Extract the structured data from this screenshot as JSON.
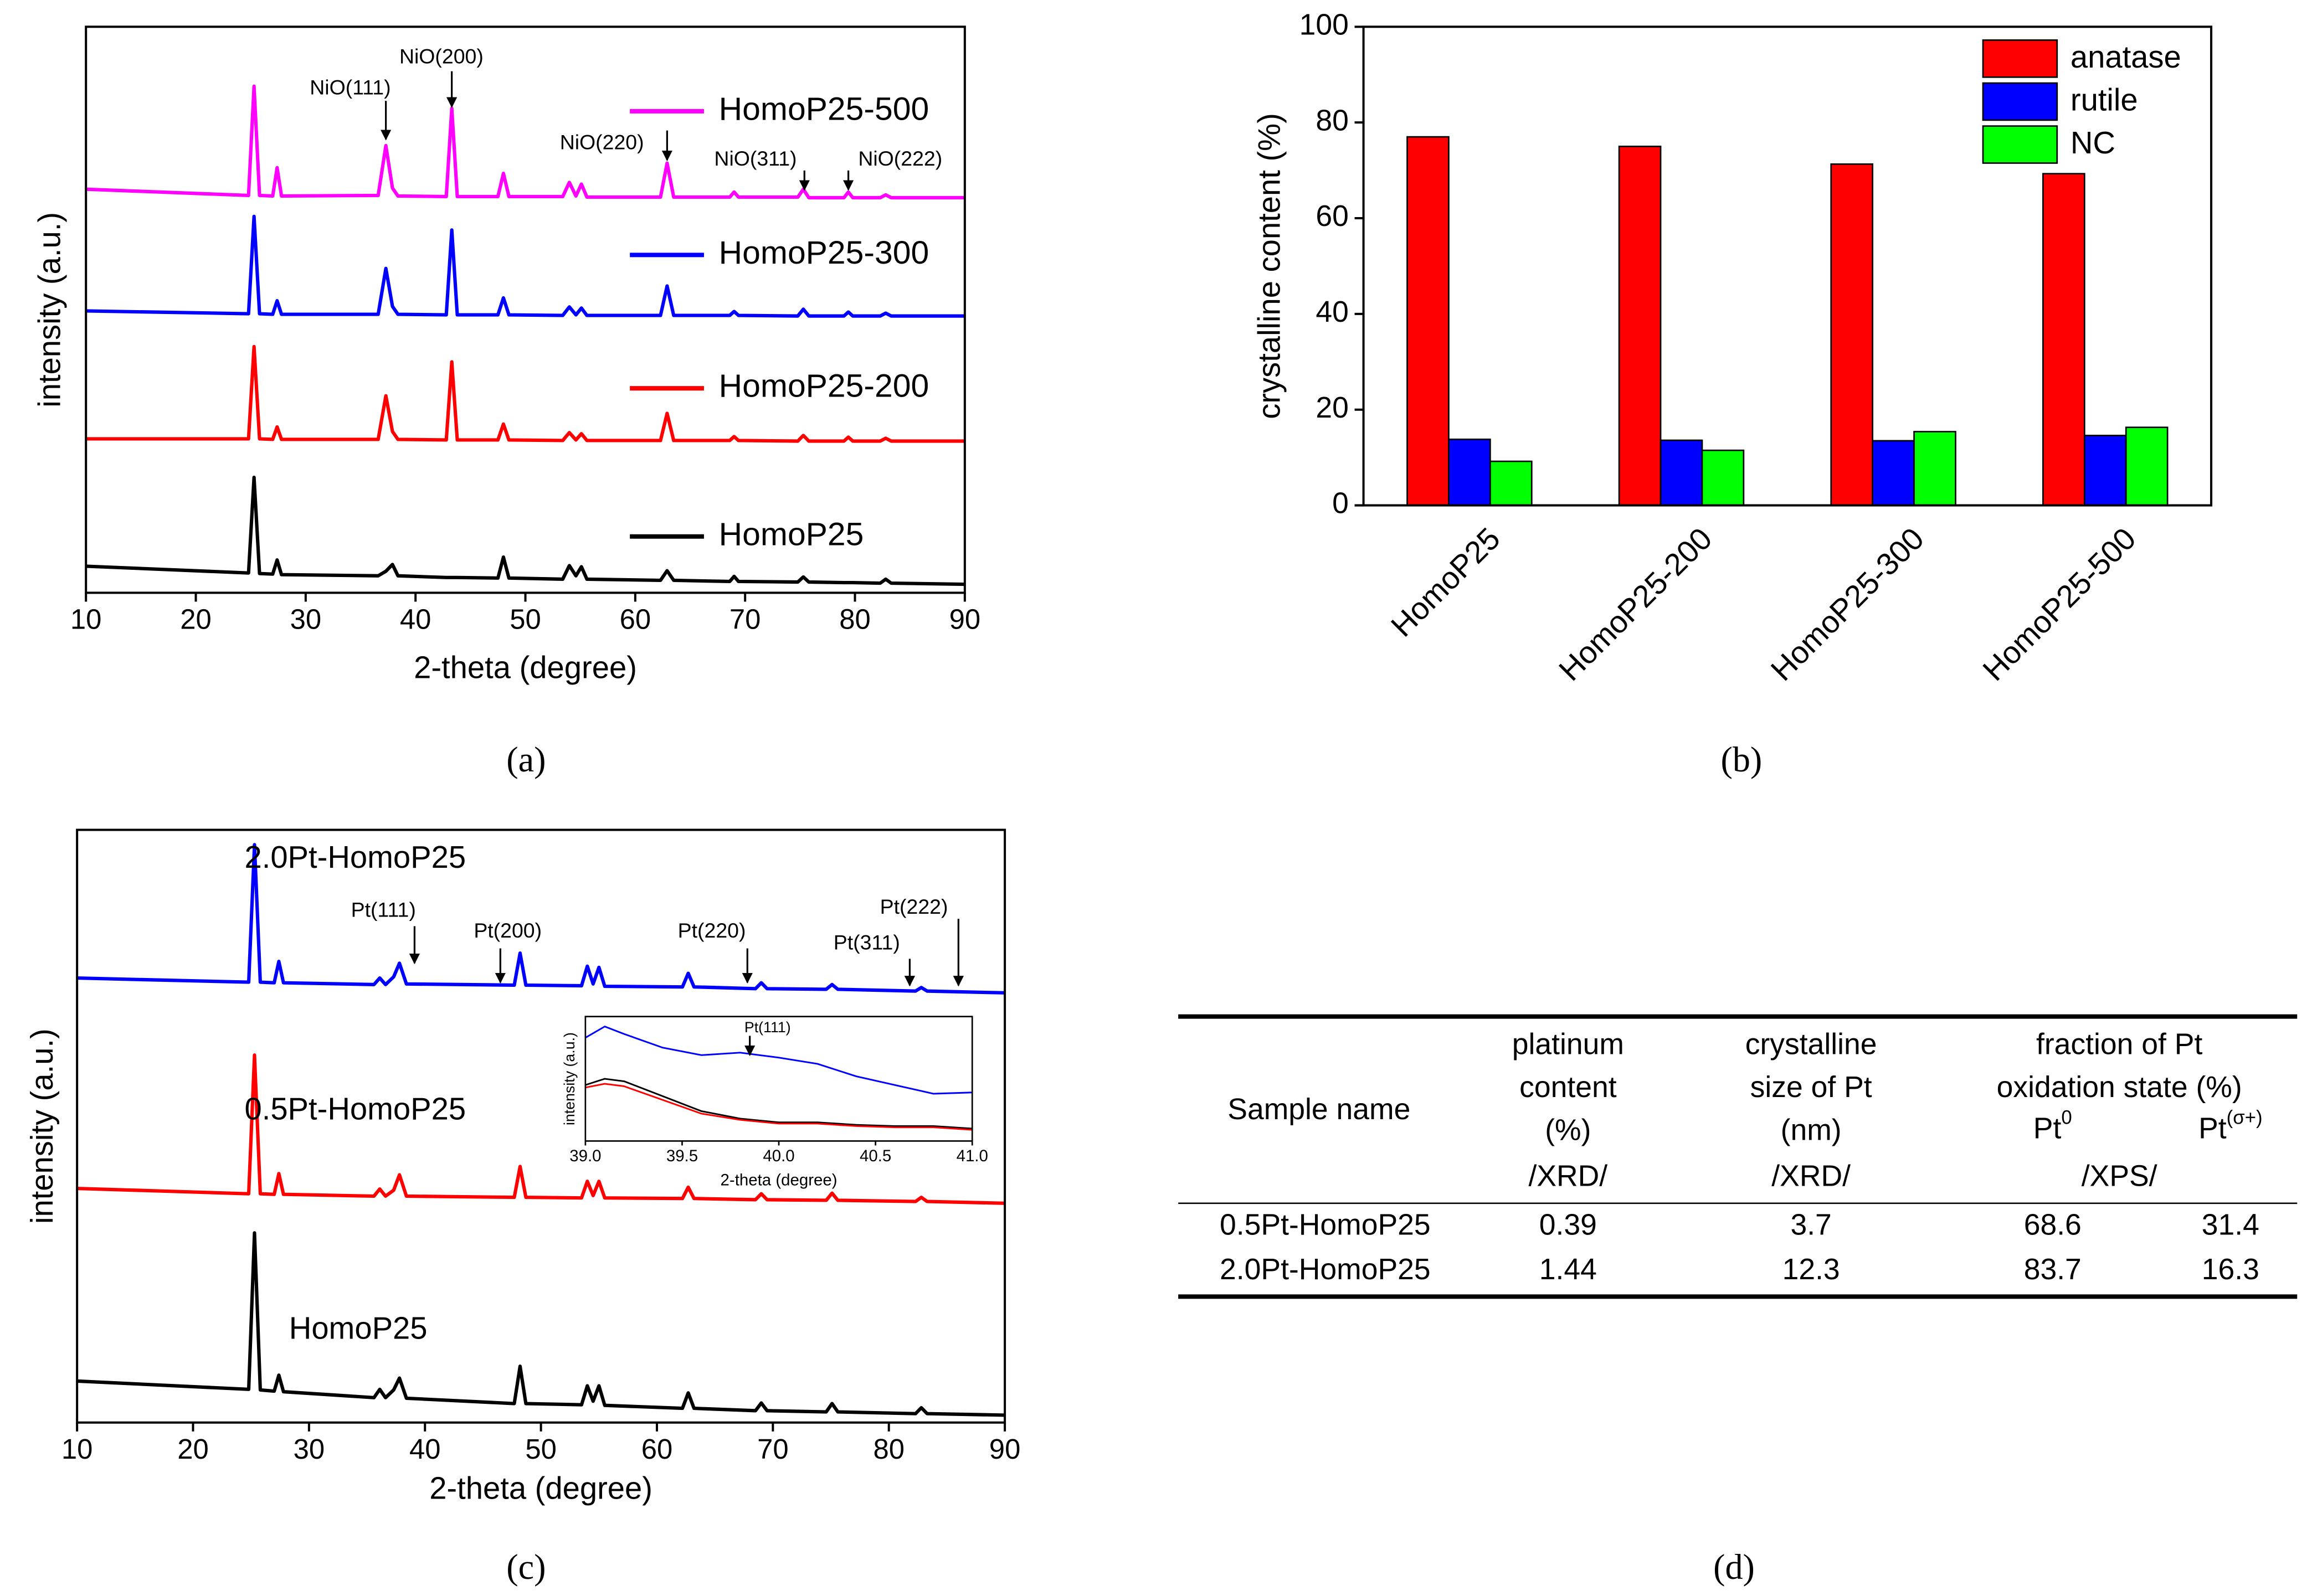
{
  "chart_data": [
    {
      "type": "line",
      "panel_label": "(a)",
      "xlabel": "2-theta (degree)",
      "ylabel": "intensity (a.u.)",
      "xlim": [
        10,
        90
      ],
      "xticks": [
        10,
        20,
        30,
        40,
        50,
        60,
        70,
        80,
        90
      ],
      "ylim": [
        0,
        100
      ],
      "x": [
        10,
        24.8,
        25.3,
        25.8,
        27.0,
        27.4,
        27.8,
        36.6,
        37.3,
        37.9,
        38.4,
        42.8,
        43.3,
        43.8,
        47.5,
        48.0,
        48.5,
        53.4,
        54.0,
        54.6,
        55.1,
        55.6,
        62.3,
        62.9,
        63.5,
        68.6,
        69.0,
        69.4,
        74.8,
        75.3,
        75.8,
        79.0,
        79.4,
        79.8,
        82.3,
        82.8,
        83.3,
        90
      ],
      "series": [
        {
          "name": "HomoP25-500",
          "color": "#ff00ff",
          "values": [
            71.3,
            70.2,
            89.5,
            70.2,
            70.1,
            75.1,
            70.1,
            70.2,
            79.0,
            71.5,
            70.1,
            70.0,
            85.6,
            70.0,
            70.0,
            74.1,
            70.0,
            70.0,
            72.5,
            70.1,
            72.2,
            69.9,
            69.9,
            75.9,
            69.9,
            69.9,
            70.8,
            69.9,
            69.9,
            71.3,
            69.8,
            69.8,
            70.8,
            69.8,
            69.8,
            70.3,
            69.8,
            69.8
          ]
        },
        {
          "name": "HomoP25-300",
          "color": "#0000ff",
          "values": [
            49.8,
            49.3,
            66.5,
            49.3,
            49.2,
            51.6,
            49.2,
            49.2,
            57.3,
            50.6,
            49.2,
            49.1,
            64.1,
            49.1,
            49.1,
            52.1,
            49.1,
            49.0,
            50.5,
            49.1,
            50.3,
            49.0,
            49.0,
            54.2,
            49.0,
            49.0,
            49.7,
            49.0,
            48.9,
            50.1,
            48.9,
            48.9,
            49.6,
            48.9,
            48.9,
            49.4,
            48.9,
            48.9
          ]
        },
        {
          "name": "HomoP25-200",
          "color": "#ff0000",
          "values": [
            27.2,
            27.2,
            43.5,
            27.2,
            27.1,
            29.3,
            27.1,
            27.1,
            34.8,
            28.5,
            27.1,
            27.0,
            40.8,
            27.0,
            27.0,
            29.8,
            27.0,
            26.9,
            28.3,
            27.0,
            28.1,
            26.9,
            26.9,
            31.7,
            26.9,
            26.9,
            27.6,
            26.9,
            26.8,
            27.8,
            26.8,
            26.8,
            27.5,
            26.8,
            26.8,
            27.3,
            26.8,
            26.8
          ]
        },
        {
          "name": "HomoP25",
          "color": "#000000",
          "values": [
            4.7,
            3.5,
            20.4,
            3.4,
            3.3,
            5.8,
            3.2,
            3.0,
            3.8,
            5.0,
            3.0,
            2.7,
            2.7,
            2.7,
            2.6,
            6.3,
            2.6,
            2.4,
            4.8,
            3.0,
            4.6,
            2.4,
            2.2,
            3.9,
            2.2,
            2.0,
            2.9,
            2.0,
            1.9,
            2.8,
            1.9,
            1.8,
            1.8,
            1.8,
            1.7,
            2.4,
            1.7,
            1.5
          ]
        }
      ],
      "annotations": [
        {
          "text": "NiO(111)",
          "x": 37.3
        },
        {
          "text": "NiO(200)",
          "x": 43.3
        },
        {
          "text": "NiO(220)",
          "x": 62.9
        },
        {
          "text": "NiO(311)",
          "x": 75.4
        },
        {
          "text": "NiO(222)",
          "x": 79.4
        }
      ]
    },
    {
      "type": "bar",
      "panel_label": "(b)",
      "ylabel": "crystalline content (%)",
      "categories": [
        "HomoP25",
        "HomoP25-200",
        "HomoP25-300",
        "HomoP25-500"
      ],
      "series": [
        {
          "name": "anatase",
          "color": "#ff0000",
          "values": [
            77,
            75,
            71.3,
            69.3
          ]
        },
        {
          "name": "rutile",
          "color": "#0000ff",
          "values": [
            13.8,
            13.6,
            13.5,
            14.6
          ]
        },
        {
          "name": "NC",
          "color": "#00ff00",
          "values": [
            9.2,
            11.5,
            15.4,
            16.3
          ]
        }
      ],
      "ylim": [
        0,
        100
      ],
      "yticks": [
        0,
        20,
        40,
        60,
        80,
        100
      ],
      "legend": "upper right"
    },
    {
      "type": "line",
      "panel_label": "(c)",
      "xlabel": "2-theta (degree)",
      "ylabel": "intensity (a.u.)",
      "xlim": [
        10,
        90
      ],
      "xticks": [
        10,
        20,
        30,
        40,
        50,
        60,
        70,
        80,
        90
      ],
      "ylim": [
        0,
        100
      ],
      "x": [
        10,
        24.8,
        25.3,
        25.8,
        27.0,
        27.4,
        27.8,
        35.6,
        36.1,
        36.6,
        37.3,
        37.8,
        38.4,
        47.7,
        48.2,
        48.7,
        53.5,
        54.0,
        54.5,
        55.0,
        55.5,
        62.2,
        62.7,
        63.2,
        68.5,
        69.0,
        69.5,
        74.6,
        75.1,
        75.6,
        82.3,
        82.8,
        83.3,
        90
      ],
      "series": [
        {
          "name": "2.0Pt-HomoP25",
          "color": "#0000ff",
          "values": [
            75.0,
            74.3,
            97.5,
            74.3,
            74.2,
            77.8,
            74.2,
            73.9,
            75.0,
            73.9,
            75.2,
            77.5,
            74.0,
            73.8,
            79.2,
            73.8,
            73.7,
            77.0,
            74.0,
            76.8,
            73.6,
            73.5,
            75.8,
            73.5,
            73.2,
            74.2,
            73.2,
            73.1,
            73.9,
            73.1,
            72.8,
            73.4,
            72.8,
            72.5
          ]
        },
        {
          "name": "0.5Pt-HomoP25",
          "color": "#ff0000",
          "values": [
            39.5,
            38.6,
            62,
            38.6,
            38.5,
            42,
            38.5,
            38.2,
            39.4,
            38.2,
            39.2,
            41.8,
            38.2,
            38.0,
            43.2,
            38.0,
            37.9,
            40.7,
            38.3,
            40.7,
            37.9,
            37.8,
            39.7,
            37.8,
            37.6,
            38.6,
            37.6,
            37.5,
            38.7,
            37.5,
            37.3,
            38.0,
            37.3,
            37.0
          ]
        },
        {
          "name": "HomoP25",
          "color": "#000000",
          "values": [
            7.0,
            5.6,
            32,
            5.5,
            5.3,
            8.0,
            5.2,
            4.2,
            5.6,
            4.2,
            5.5,
            7.5,
            4.1,
            3.2,
            9.5,
            3.2,
            3.0,
            6.2,
            3.6,
            6.2,
            2.9,
            2.4,
            5.0,
            2.4,
            2.0,
            3.3,
            2.0,
            1.8,
            3.2,
            1.8,
            1.5,
            2.5,
            1.5,
            1.25
          ]
        }
      ],
      "annotations": [
        {
          "text": "Pt(111)",
          "x": 39.1
        },
        {
          "text": "Pt(200)",
          "x": 46.5
        },
        {
          "text": "Pt(220)",
          "x": 67.8
        },
        {
          "text": "Pt(311)",
          "x": 81.8
        },
        {
          "text": "Pt(222)",
          "x": 86.0
        }
      ],
      "inset": {
        "xlabel": "2-theta (degree)",
        "ylabel": "intensity (a.u.)",
        "xlim": [
          39,
          41
        ],
        "xticks": [
          {
            "value": 39,
            "label": "39.0"
          },
          {
            "value": 39.5,
            "label": "39.5"
          },
          {
            "value": 40,
            "label": "40.0"
          },
          {
            "value": 40.5,
            "label": "40.5"
          },
          {
            "value": 41,
            "label": "41.0"
          }
        ],
        "ylim": [
          0,
          100
        ],
        "x": [
          39.0,
          39.1,
          39.2,
          39.4,
          39.6,
          39.8,
          40.0,
          40.2,
          40.4,
          40.6,
          40.8,
          41.0
        ],
        "series": [
          {
            "color": "#0000ff",
            "values": [
              83,
              92,
              86,
              75,
              69,
              71,
              67,
              62,
              52,
              45,
              38,
              39
            ]
          },
          {
            "color": "#000000",
            "values": [
              45,
              50,
              48,
              36,
              24,
              18,
              15,
              15,
              13,
              12,
              12,
              10
            ]
          },
          {
            "color": "#ff0000",
            "values": [
              43,
              46,
              44,
              33,
              22,
              17,
              14,
              14,
              12,
              11,
              11,
              9
            ]
          }
        ],
        "annotations": [
          {
            "text": "Pt(111)",
            "x": 39.85
          }
        ]
      }
    }
  ],
  "table": {
    "panel_label": "(d)",
    "columns": [
      {
        "lines": [
          "Sample name"
        ]
      },
      {
        "lines": [
          "platinum",
          "content",
          "(%)"
        ]
      },
      {
        "lines": [
          "crystalline",
          "size of Pt",
          "(nm)"
        ]
      },
      {
        "lines": [
          "fraction of Pt",
          "oxidation state (%)"
        ]
      }
    ],
    "subheaders": [
      {
        "base": "Pt",
        "sup": "0"
      },
      {
        "base": "Pt",
        "sup": "(σ+)"
      }
    ],
    "methods": [
      "/XRD/",
      "/XRD/",
      "/XPS/"
    ],
    "rows": [
      [
        "0.5Pt-HomoP25",
        0.39,
        3.7,
        68.6,
        31.4
      ],
      [
        "2.0Pt-HomoP25",
        1.44,
        12.3,
        83.7,
        16.3
      ]
    ]
  }
}
